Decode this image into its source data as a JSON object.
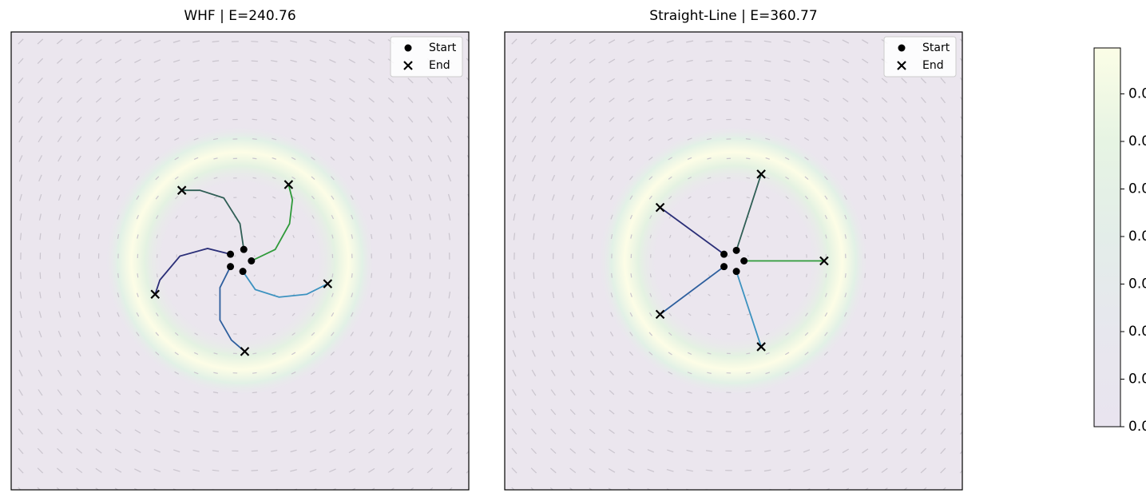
{
  "chart_data": [
    {
      "type": "line",
      "title": "WHF | E=240.76",
      "xlim": [
        -2.4,
        2.4
      ],
      "ylim": [
        -2.4,
        2.4
      ],
      "legend": "upper right",
      "legend_labels": [
        "Start",
        "End"
      ],
      "trajectories": [
        {
          "color": "#2f9a3a",
          "x": [
            0.12,
            0.37,
            0.52,
            0.55,
            0.51
          ],
          "y": [
            0.0,
            0.12,
            0.39,
            0.64,
            0.8
          ]
        },
        {
          "color": "#3c92c0",
          "x": [
            0.03,
            0.16,
            0.41,
            0.7,
            0.92
          ],
          "y": [
            -0.11,
            -0.3,
            -0.38,
            -0.35,
            -0.24
          ]
        },
        {
          "color": "#2e5f9e",
          "x": [
            -0.1,
            -0.21,
            -0.21,
            -0.09,
            0.05
          ],
          "y": [
            -0.06,
            -0.28,
            -0.62,
            -0.83,
            -0.95
          ]
        },
        {
          "color": "#2b2f78",
          "x": [
            -0.1,
            -0.34,
            -0.63,
            -0.84,
            -0.89
          ],
          "y": [
            0.07,
            0.13,
            0.05,
            -0.2,
            -0.35
          ]
        },
        {
          "color": "#2f5e55",
          "x": [
            0.04,
            0.0,
            -0.17,
            -0.42,
            -0.61
          ],
          "y": [
            0.12,
            0.39,
            0.66,
            0.74,
            0.74
          ]
        }
      ]
    },
    {
      "type": "line",
      "title": "Straight-Line | E=360.77",
      "xlim": [
        -2.4,
        2.4
      ],
      "ylim": [
        -2.4,
        2.4
      ],
      "legend": "upper right",
      "legend_labels": [
        "Start",
        "End"
      ],
      "trajectories": [
        {
          "color": "#2f5e55",
          "x": [
            0.03,
            0.29
          ],
          "y": [
            0.11,
            0.91
          ]
        },
        {
          "color": "#2f9a3a",
          "x": [
            0.11,
            0.95
          ],
          "y": [
            0.0,
            0.0
          ]
        },
        {
          "color": "#3c92c0",
          "x": [
            0.03,
            0.29
          ],
          "y": [
            -0.11,
            -0.9
          ]
        },
        {
          "color": "#2e5f9e",
          "x": [
            -0.1,
            -0.77
          ],
          "y": [
            -0.06,
            -0.56
          ]
        },
        {
          "color": "#2b2f78",
          "x": [
            -0.1,
            -0.77
          ],
          "y": [
            0.07,
            0.56
          ]
        }
      ]
    }
  ],
  "colorbar": {
    "ticklabels": [
      "0.0",
      "0.0",
      "0.0",
      "0.0",
      "0.0",
      "0.0",
      "0.0",
      "0.0"
    ]
  }
}
